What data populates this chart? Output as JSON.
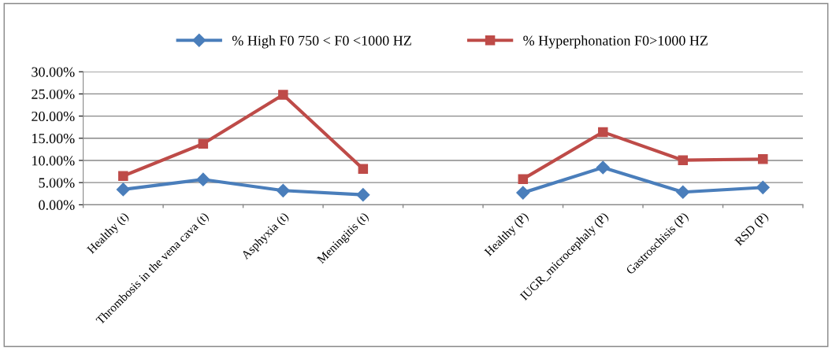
{
  "chart_data": {
    "type": "line",
    "categories": [
      "Healthy (t)",
      "Thrombosis in the vena cava (t)",
      "Asphyxia (t)",
      "Meningitis (t)",
      null,
      "Healthy (P)",
      "IUGR_microcephaly (P)",
      "Gastroschisis (P)",
      "RSD (P)"
    ],
    "series": [
      {
        "name": "% High F0 750 < F0 <1000 HZ",
        "color": "#4a7ebb",
        "marker": "diamond",
        "values": [
          3.45,
          5.7,
          3.2,
          2.25,
          null,
          2.7,
          8.4,
          2.85,
          3.9
        ]
      },
      {
        "name": "% Hyperphonation F0>1000 HZ",
        "color": "#be4b48",
        "marker": "square",
        "values": [
          6.5,
          13.75,
          24.8,
          8.1,
          null,
          5.8,
          16.4,
          10.05,
          10.3
        ]
      }
    ],
    "ylim": [
      0,
      30
    ],
    "yticks": [
      {
        "value": 0,
        "label": "0.00%"
      },
      {
        "value": 5,
        "label": "5.00%"
      },
      {
        "value": 10,
        "label": "10.00%"
      },
      {
        "value": 15,
        "label": "15.00%"
      },
      {
        "value": 20,
        "label": "20.00%"
      },
      {
        "value": 25,
        "label": "25.00%"
      },
      {
        "value": 30,
        "label": "30.00%"
      }
    ],
    "grid": "y",
    "legend": "top",
    "line_style": "solid"
  }
}
